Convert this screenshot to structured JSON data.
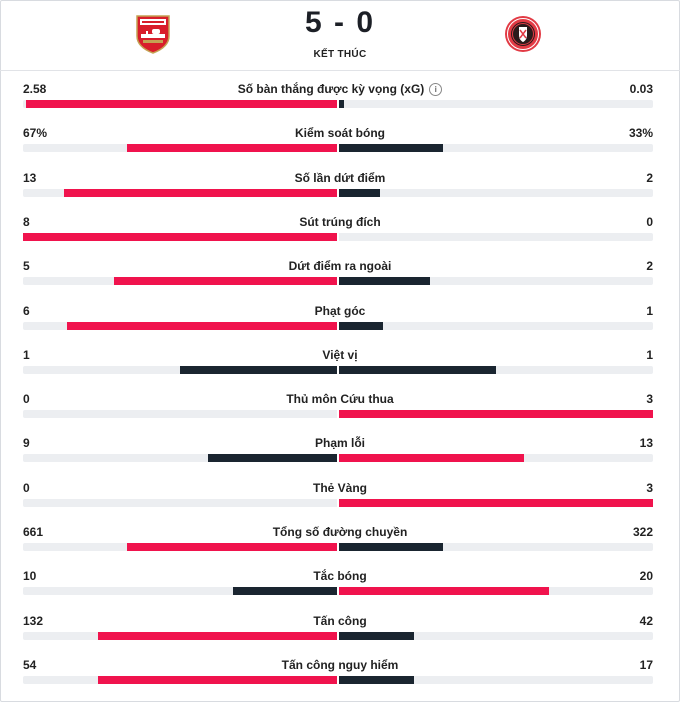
{
  "match": {
    "home_crest": "arsenal-crest",
    "away_crest": "sheffield-united-crest",
    "score": "5 - 0",
    "status": "KẾT THÚC"
  },
  "colors": {
    "home": "#f0134d",
    "away": "#1a2530",
    "track": "#eceef1"
  },
  "stats": [
    {
      "label": "Số bàn thắng được kỳ vọng (xG)",
      "home": "2.58",
      "away": "0.03",
      "home_share": 0.99,
      "away_share": 0.01,
      "home_color": "#f0134d",
      "away_color": "#1a2530",
      "info": true
    },
    {
      "label": "Kiểm soát bóng",
      "home": "67%",
      "away": "33%",
      "home_share": 0.67,
      "away_share": 0.33,
      "home_color": "#f0134d",
      "away_color": "#1a2530"
    },
    {
      "label": "Số lần dứt điểm",
      "home": "13",
      "away": "2",
      "home_share": 0.87,
      "away_share": 0.13,
      "home_color": "#f0134d",
      "away_color": "#1a2530"
    },
    {
      "label": "Sút trúng đích",
      "home": "8",
      "away": "0",
      "home_share": 1.0,
      "away_share": 0.0,
      "home_color": "#f0134d",
      "away_color": "#1a2530"
    },
    {
      "label": "Dứt điểm ra ngoài",
      "home": "5",
      "away": "2",
      "home_share": 0.71,
      "away_share": 0.29,
      "home_color": "#f0134d",
      "away_color": "#1a2530"
    },
    {
      "label": "Phạt góc",
      "home": "6",
      "away": "1",
      "home_share": 0.86,
      "away_share": 0.14,
      "home_color": "#f0134d",
      "away_color": "#1a2530"
    },
    {
      "label": "Việt vị",
      "home": "1",
      "away": "1",
      "home_share": 0.5,
      "away_share": 0.5,
      "home_color": "#1a2530",
      "away_color": "#1a2530"
    },
    {
      "label": "Thủ môn Cứu thua",
      "home": "0",
      "away": "3",
      "home_share": 0.0,
      "away_share": 1.0,
      "home_color": "#1a2530",
      "away_color": "#f0134d"
    },
    {
      "label": "Phạm lỗi",
      "home": "9",
      "away": "13",
      "home_share": 0.41,
      "away_share": 0.59,
      "home_color": "#1a2530",
      "away_color": "#f0134d"
    },
    {
      "label": "Thẻ Vàng",
      "home": "0",
      "away": "3",
      "home_share": 0.0,
      "away_share": 1.0,
      "home_color": "#1a2530",
      "away_color": "#f0134d"
    },
    {
      "label": "Tổng số đường chuyền",
      "home": "661",
      "away": "322",
      "home_share": 0.67,
      "away_share": 0.33,
      "home_color": "#f0134d",
      "away_color": "#1a2530"
    },
    {
      "label": "Tắc bóng",
      "home": "10",
      "away": "20",
      "home_share": 0.33,
      "away_share": 0.67,
      "home_color": "#1a2530",
      "away_color": "#f0134d"
    },
    {
      "label": "Tấn công",
      "home": "132",
      "away": "42",
      "home_share": 0.76,
      "away_share": 0.24,
      "home_color": "#f0134d",
      "away_color": "#1a2530"
    },
    {
      "label": "Tấn công nguy hiểm",
      "home": "54",
      "away": "17",
      "home_share": 0.76,
      "away_share": 0.24,
      "home_color": "#f0134d",
      "away_color": "#1a2530"
    }
  ]
}
